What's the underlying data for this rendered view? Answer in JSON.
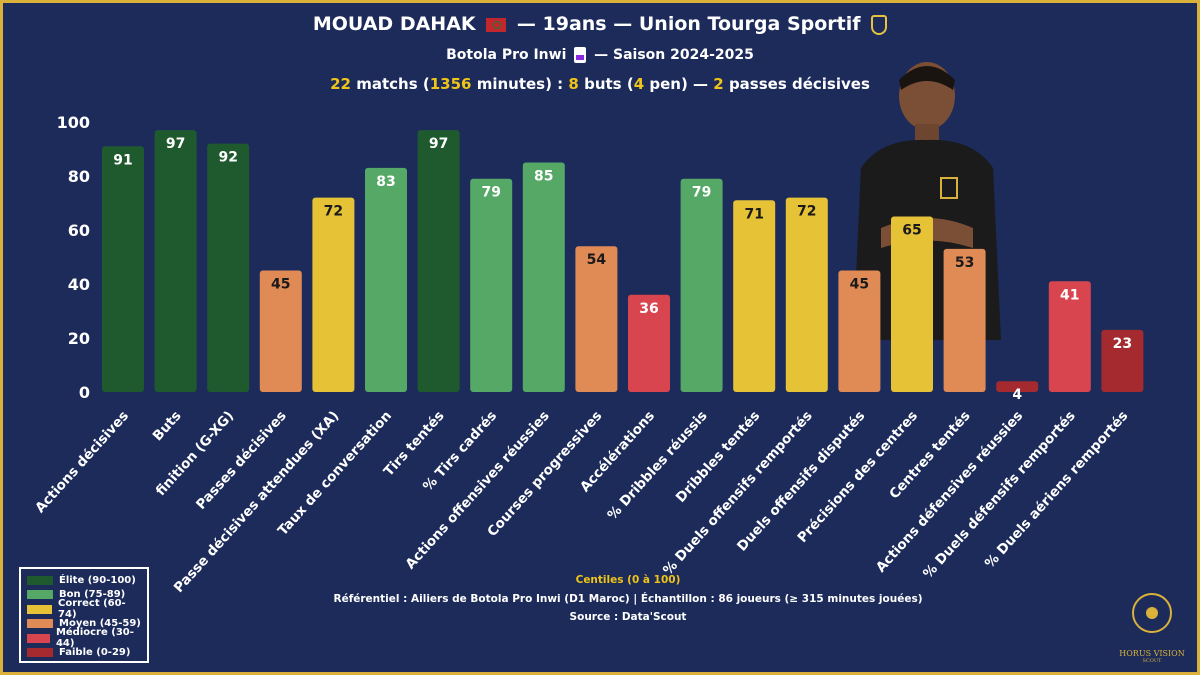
{
  "header": {
    "player": "MOUAD DAHAK",
    "age": "19ans",
    "club": "Union Tourga Sportif",
    "league": "Botola Pro Inwi",
    "season": "Saison 2024-2025",
    "matches": "22",
    "matches_label": "matchs (",
    "minutes": "1356",
    "minutes_label": "minutes) :",
    "goals": "8",
    "goals_label": "buts (",
    "pens": "4",
    "pens_label": "pen) —",
    "assists": "2",
    "assists_label": "passes décisives"
  },
  "chart_data": {
    "type": "bar",
    "ylim": [
      0,
      100
    ],
    "yticks": [
      0,
      20,
      40,
      60,
      80,
      100
    ],
    "grid": false,
    "categories": [
      "Actions décisives",
      "Buts",
      "finition (G-XG)",
      "Passes décisives",
      "Passe décisives attendues (XA)",
      "Taux de conversation",
      "Tirs tentés",
      "% Tirs cadrés",
      "Actions offensives réussies",
      "Courses progressives",
      "Accélérations",
      "% Dribbles réussis",
      "Dribbles tentés",
      "% Duels offensifs remportés",
      "Duels offensifs disputés",
      "Précisions des centres",
      "Centres tentés",
      "Actions défensives réussies",
      "% Duels défensifs remportés",
      "% Duels aériens remportés"
    ],
    "values": [
      91,
      97,
      92,
      45,
      72,
      83,
      97,
      79,
      85,
      54,
      36,
      79,
      71,
      72,
      45,
      65,
      53,
      4,
      41,
      23
    ],
    "legend": [
      {
        "label": "Élite (90-100)",
        "color": "#1e5a2e"
      },
      {
        "label": "Bon (75-89)",
        "color": "#55a866"
      },
      {
        "label": "Correct (60-74)",
        "color": "#e6c237"
      },
      {
        "label": "Moyen (45-59)",
        "color": "#e08a55"
      },
      {
        "label": "Médiocre (30-44)",
        "color": "#d9454f"
      },
      {
        "label": "Faible (0-29)",
        "color": "#a52a2f"
      }
    ],
    "legend_position": "bottom-left"
  },
  "footer": {
    "title": "Centiles (0 à 100)",
    "ref": "Référentiel : Ailiers de Botola Pro Inwi (D1 Maroc) | Échantillon : 86 joueurs (≥ 315 minutes jouées)",
    "source": "Source : Data'Scout"
  },
  "brand": {
    "name": "HORUS VISION",
    "tag": "SCOUT"
  }
}
